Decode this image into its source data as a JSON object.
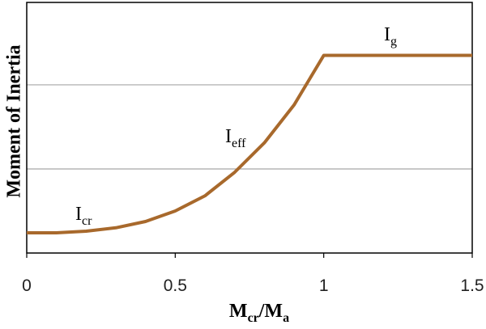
{
  "chart_data": {
    "type": "line",
    "x": [
      0,
      0.1,
      0.2,
      0.3,
      0.4,
      0.5,
      0.6,
      0.7,
      0.8,
      0.9,
      1,
      1.5
    ],
    "series": [
      {
        "color": "#a8692c",
        "values": [
          0.24,
          0.24,
          0.26,
          0.3,
          0.375,
          0.5,
          0.68,
          0.96,
          1.31,
          1.76,
          2.35,
          2.35
        ]
      }
    ],
    "xlim": [
      0,
      1.5
    ],
    "xticks": [
      0,
      0.5,
      1,
      1.5
    ],
    "ylim": [
      0,
      2.98
    ],
    "ygrid": [
      1,
      2
    ],
    "x_label": [
      "M",
      "cr",
      "/M",
      "a"
    ],
    "y_label": "Moment of Inertia",
    "annotations": [
      {
        "text": "I",
        "sub": "cr"
      },
      {
        "text": "I",
        "sub": "eff"
      },
      {
        "text": "I",
        "sub": "g"
      }
    ]
  }
}
